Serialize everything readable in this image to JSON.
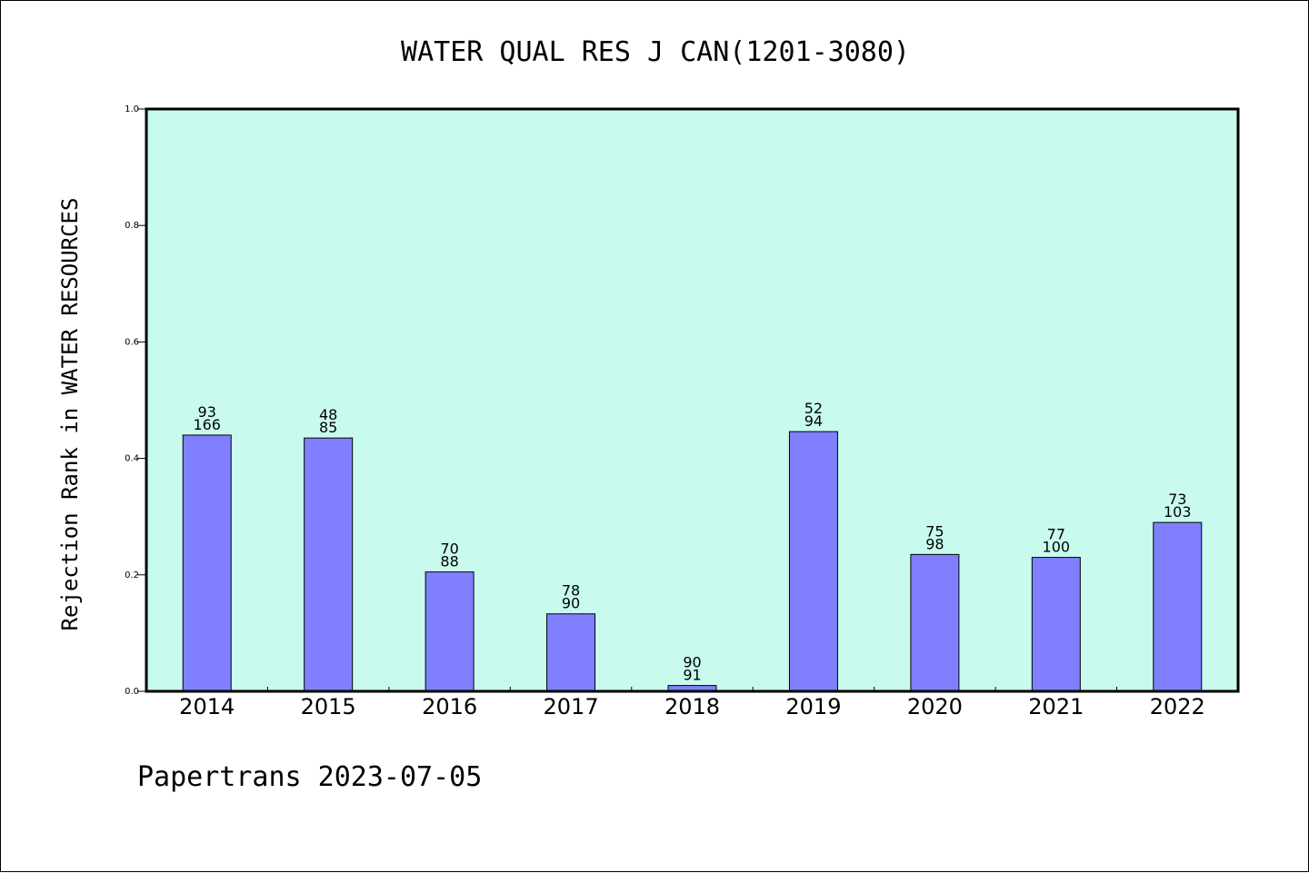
{
  "chart_data": {
    "type": "bar",
    "title": "WATER QUAL RES J CAN(1201-3080)",
    "xlabel": "",
    "ylabel": "Rejection Rank in WATER RESOURCES",
    "ylim": [
      0,
      1.0
    ],
    "yticks": [
      "0.0",
      "0.2",
      "0.4",
      "0.6",
      "0.8",
      "1.0"
    ],
    "categories": [
      "2014",
      "2015",
      "2016",
      "2017",
      "2018",
      "2019",
      "2020",
      "2021",
      "2022"
    ],
    "values": [
      0.44,
      0.435,
      0.205,
      0.133,
      0.01,
      0.446,
      0.235,
      0.23,
      0.29
    ],
    "labels_top": [
      "93",
      "48",
      "70",
      "78",
      "90",
      "52",
      "75",
      "77",
      "73"
    ],
    "labels_bottom": [
      "166",
      "85",
      "88",
      "90",
      "91",
      "94",
      "98",
      "100",
      "103"
    ],
    "grid": false,
    "legend": "none",
    "colors": {
      "plot_background": "#c8fbee",
      "bar_fill": "#8080ff",
      "bar_stroke": "#000000"
    }
  },
  "footer": {
    "text": "Papertrans 2023-07-05"
  }
}
